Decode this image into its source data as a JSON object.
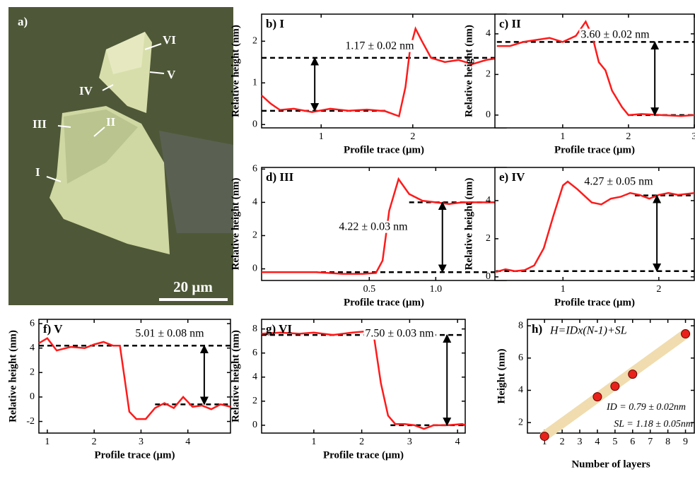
{
  "micrograph": {
    "panel_label": "a)",
    "markers": [
      "VI",
      "V",
      "IV",
      "III",
      "II",
      "I"
    ],
    "scale_bar": "20 μm"
  },
  "chart_data": [
    {
      "type": "line",
      "title": "b) I",
      "xlabel": "Profile trace (μm)",
      "ylabel": "Relative height (nm)",
      "color": "#ff1a1a",
      "x": [
        0.35,
        0.45,
        0.55,
        0.7,
        0.9,
        1.1,
        1.3,
        1.5,
        1.7,
        1.85,
        1.92,
        1.97,
        2.03,
        2.1,
        2.2,
        2.35,
        2.5,
        2.65,
        2.8,
        2.95,
        3.02
      ],
      "values": [
        0.7,
        0.5,
        0.35,
        0.38,
        0.3,
        0.38,
        0.33,
        0.36,
        0.32,
        0.2,
        0.9,
        1.8,
        2.3,
        2.0,
        1.6,
        1.5,
        1.55,
        1.45,
        1.55,
        1.6,
        1.7
      ],
      "levels": [
        {
          "y": 0.33,
          "x": [
            0.35,
            1.7
          ]
        },
        {
          "y": 1.6,
          "x": [
            0.35,
            3.02
          ]
        }
      ],
      "arrow_x": 0.93,
      "annotation": "1.17 ± 0.02 nm",
      "xlim": [
        0.35,
        3.02
      ],
      "ylim": [
        -0.08,
        2.65
      ],
      "xticks": [
        1,
        2
      ],
      "yticks": [
        0,
        1,
        2
      ]
    },
    {
      "type": "line",
      "title": "c) II",
      "xlabel": "Profile trace (μm)",
      "ylabel": "Relative height (nm)",
      "color": "#ff1a1a",
      "x": [
        0,
        0.2,
        0.4,
        0.6,
        0.8,
        1.0,
        1.2,
        1.35,
        1.45,
        1.55,
        1.65,
        1.75,
        1.9,
        2.0,
        2.2,
        2.5,
        2.8,
        3.0
      ],
      "values": [
        3.4,
        3.4,
        3.6,
        3.7,
        3.8,
        3.6,
        3.9,
        4.6,
        3.9,
        2.6,
        2.2,
        1.2,
        0.4,
        0.0,
        0.05,
        0.0,
        -0.05,
        0.0
      ],
      "levels": [
        {
          "y": 0,
          "x": [
            2.0,
            3.0
          ]
        },
        {
          "y": 3.6,
          "x": [
            0,
            3.0
          ]
        }
      ],
      "arrow_x": 2.4,
      "annotation": "3.60 ± 0.02 nm",
      "xlim": [
        -0.03,
        3.0
      ],
      "ylim": [
        -0.63,
        4.97
      ],
      "xticks": [
        1,
        2,
        3
      ],
      "yticks": [
        0,
        2,
        4
      ]
    },
    {
      "type": "line",
      "title": "d) III",
      "xlabel": "Profile trace (μm)",
      "ylabel": "Relative height (nm)",
      "color": "#ff1a1a",
      "x": [
        -0.31,
        -0.1,
        0.1,
        0.3,
        0.45,
        0.55,
        0.6,
        0.65,
        0.72,
        0.8,
        0.9,
        1.0,
        1.1,
        1.2,
        1.3,
        1.4,
        1.53
      ],
      "values": [
        -0.2,
        -0.2,
        -0.2,
        -0.3,
        -0.3,
        -0.25,
        0.5,
        3.5,
        5.4,
        4.5,
        4.1,
        4.0,
        3.9,
        4.0,
        4.0,
        4.0,
        4.0
      ],
      "levels": [
        {
          "y": -0.2,
          "x": [
            -0.31,
            1.53
          ]
        },
        {
          "y": 4.0,
          "x": [
            0.8,
            1.53
          ]
        }
      ],
      "arrow_x": 1.05,
      "annotation": "4.22 ± 0.03 nm",
      "xlim": [
        -0.31,
        1.53
      ],
      "ylim": [
        -0.7,
        6.1
      ],
      "xticks": [
        0.5,
        {
          "value": 1,
          "label": "1.0"
        }
      ],
      "yticks": [
        0,
        2,
        4,
        6
      ]
    },
    {
      "type": "line",
      "title": "e) IV",
      "xlabel": "Profile trace (μm)",
      "ylabel": "Relative height (nm)",
      "color": "#ff1a1a",
      "x": [
        0.3,
        0.4,
        0.5,
        0.6,
        0.7,
        0.8,
        0.9,
        1.0,
        1.05,
        1.15,
        1.3,
        1.4,
        1.5,
        1.6,
        1.7,
        1.8,
        1.9,
        2.0,
        2.1,
        2.2,
        2.37
      ],
      "values": [
        0.25,
        0.4,
        0.3,
        0.35,
        0.6,
        1.5,
        3.2,
        4.8,
        5.0,
        4.6,
        3.9,
        3.8,
        4.1,
        4.2,
        4.4,
        4.3,
        4.1,
        4.3,
        4.4,
        4.3,
        4.4
      ],
      "levels": [
        {
          "y": 0.3,
          "x": [
            0.3,
            2.37
          ]
        },
        {
          "y": 4.27,
          "x": [
            1.75,
            2.37
          ]
        }
      ],
      "arrow_x": 1.98,
      "annotation": "4.27 ± 0.05 nm",
      "xlim": [
        0.29,
        2.37
      ],
      "ylim": [
        -0.19,
        5.74
      ],
      "xticks": [
        1,
        2
      ],
      "yticks": [
        0,
        2,
        4
      ]
    },
    {
      "type": "line",
      "title": "f) V",
      "xlabel": "Profile trace (μm)",
      "ylabel": "Relative height (nm)",
      "color": "#ff1a1a",
      "x": [
        0.82,
        1.0,
        1.2,
        1.5,
        1.8,
        2.0,
        2.2,
        2.4,
        2.55,
        2.65,
        2.75,
        2.9,
        3.1,
        3.3,
        3.5,
        3.7,
        3.9,
        4.1,
        4.3,
        4.5,
        4.7,
        4.91
      ],
      "values": [
        4.4,
        4.8,
        3.8,
        4.1,
        4.0,
        4.3,
        4.5,
        4.2,
        4.2,
        1.5,
        -1.2,
        -1.8,
        -1.8,
        -0.9,
        -0.5,
        -0.9,
        0.0,
        -0.8,
        -0.7,
        -1.0,
        -0.6,
        -0.8
      ],
      "levels": [
        {
          "y": 4.2,
          "x": [
            0.82,
            4.91
          ]
        },
        {
          "y": -0.6,
          "x": [
            3.3,
            4.91
          ]
        }
      ],
      "arrow_x": 4.35,
      "annotation": "5.01 ± 0.08 nm",
      "xlim": [
        0.82,
        4.91
      ],
      "ylim": [
        -2.95,
        6.35
      ],
      "xticks": [
        1,
        2,
        3,
        4
      ],
      "yticks": [
        -2,
        0,
        2,
        4,
        6
      ]
    },
    {
      "type": "line",
      "title": "g) VI",
      "xlabel": "Profile trace (μm)",
      "ylabel": "Relative height (nm)",
      "color": "#ff1a1a",
      "x": [
        -0.09,
        0.3,
        0.7,
        1.0,
        1.4,
        1.8,
        2.1,
        2.25,
        2.4,
        2.55,
        2.7,
        2.9,
        3.1,
        3.3,
        3.5,
        3.8,
        4.1,
        4.16
      ],
      "values": [
        7.6,
        7.7,
        7.6,
        7.7,
        7.5,
        7.7,
        7.8,
        7.5,
        3.5,
        0.8,
        0.1,
        0.1,
        0.0,
        -0.3,
        0.0,
        0.0,
        0.1,
        0.0
      ],
      "levels": [
        {
          "y": 7.5,
          "x": [
            -0.09,
            4.16
          ]
        },
        {
          "y": 0,
          "x": [
            2.6,
            4.16
          ]
        }
      ],
      "arrow_x": 3.78,
      "annotation": "7.50 ± 0.03 nm",
      "xlim": [
        -0.09,
        4.16
      ],
      "ylim": [
        -0.65,
        8.8
      ],
      "xticks": [
        1,
        2,
        3,
        4
      ],
      "yticks": [
        0,
        2,
        4,
        6,
        8
      ]
    },
    {
      "type": "scatter",
      "title": "h)",
      "xlabel": "Number of layers",
      "ylabel": "Height (nm)",
      "color": "#e8211b",
      "x": [
        1,
        4,
        5,
        6,
        9
      ],
      "values": [
        1.15,
        3.6,
        4.25,
        5.0,
        7.5
      ],
      "errors": [
        0.1,
        0.2,
        0.2,
        0.25,
        0.1
      ],
      "fit_line": {
        "x": [
          1,
          9
        ],
        "y": [
          1.18,
          7.5
        ],
        "color": "#f0dcae"
      },
      "formula": "H=IDx(N-1)+SL",
      "annotations": [
        "ID = 0.79 ± 0.02nm",
        "SL = 1.18 ± 0.05nm"
      ],
      "xlim": [
        0.03,
        9.5
      ],
      "ylim": [
        1.35,
        8.4
      ],
      "xticks": [
        1,
        2,
        3,
        4,
        5,
        6,
        7,
        8,
        9
      ],
      "yticks": [
        2,
        4,
        6,
        8
      ]
    }
  ]
}
